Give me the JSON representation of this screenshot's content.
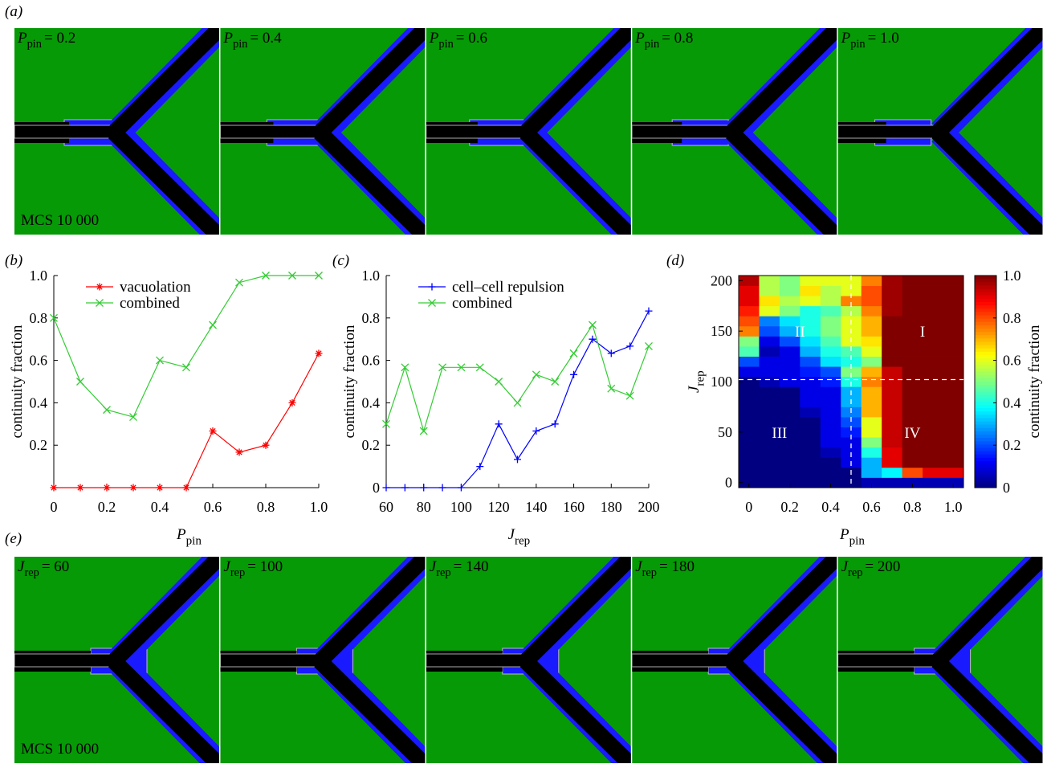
{
  "panel_a": {
    "label": "(a)",
    "footer": "MCS 10 000",
    "captions": [
      {
        "symbol": "P",
        "sub": "pin",
        "text": "= 0.2"
      },
      {
        "symbol": "P",
        "sub": "pin",
        "text": "= 0.4"
      },
      {
        "symbol": "P",
        "sub": "pin",
        "text": "= 0.6"
      },
      {
        "symbol": "P",
        "sub": "pin",
        "text": "= 0.8"
      },
      {
        "symbol": "P",
        "sub": "pin",
        "text": "= 1.0"
      }
    ]
  },
  "panel_e": {
    "label": "(e)",
    "footer": "MCS 10 000",
    "captions": [
      {
        "symbol": "J",
        "sub": "rep",
        "text": "= 60"
      },
      {
        "symbol": "J",
        "sub": "rep",
        "text": "= 100"
      },
      {
        "symbol": "J",
        "sub": "rep",
        "text": "= 140"
      },
      {
        "symbol": "J",
        "sub": "rep",
        "text": "= 180"
      },
      {
        "symbol": "J",
        "sub": "rep",
        "text": "= 200"
      }
    ]
  },
  "chart_data": [
    {
      "type": "line",
      "panel": "(b)",
      "x_label": {
        "symbol": "P",
        "sub": "pin"
      },
      "y_label": "continuity fraction",
      "x": [
        0,
        0.1,
        0.2,
        0.3,
        0.4,
        0.5,
        0.6,
        0.7,
        0.8,
        0.9,
        1.0
      ],
      "series": [
        {
          "name": "vacuolation",
          "color": "#ff0000",
          "marker": "*",
          "values": [
            0,
            0,
            0,
            0,
            0,
            0,
            0.267,
            0.167,
            0.2,
            0.4,
            0.633
          ]
        },
        {
          "name": "combined",
          "color": "#33cc33",
          "marker": "x",
          "values": [
            0.8,
            0.5,
            0.367,
            0.333,
            0.6,
            0.567,
            0.767,
            0.967,
            1.0,
            1.0,
            1.0
          ]
        }
      ],
      "xlim": [
        0,
        1
      ],
      "ylim": [
        0,
        1
      ],
      "xticks": [
        0,
        0.2,
        0.4,
        0.6,
        0.8,
        {
          "value": 1,
          "label": "1.0"
        }
      ],
      "yticks": [
        0.2,
        0.4,
        0.6,
        0.8,
        {
          "value": 1,
          "label": "1.0"
        }
      ]
    },
    {
      "type": "line",
      "panel": "(c)",
      "x_label": {
        "symbol": "J",
        "sub": "rep"
      },
      "y_label": "continuity fraction",
      "x": [
        60,
        70,
        80,
        90,
        100,
        110,
        120,
        130,
        140,
        150,
        160,
        170,
        180,
        190,
        200
      ],
      "series": [
        {
          "name": "cell–cell repulsion",
          "color": "#0000ff",
          "marker": "+",
          "values": [
            0,
            0,
            0,
            0,
            0,
            0.1,
            0.3,
            0.133,
            0.267,
            0.3,
            0.533,
            0.7,
            0.633,
            0.667,
            0.833
          ]
        },
        {
          "name": "combined",
          "color": "#33cc33",
          "marker": "x",
          "values": [
            0.3,
            0.567,
            0.267,
            0.567,
            0.567,
            0.567,
            0.5,
            0.4,
            0.533,
            0.5,
            0.633,
            0.767,
            0.467,
            0.433,
            0.667
          ]
        }
      ],
      "xlim": [
        60,
        200
      ],
      "ylim": [
        0,
        1
      ],
      "xticks": [
        60,
        80,
        100,
        120,
        140,
        160,
        180,
        200
      ],
      "yticks": [
        0,
        0.2,
        0.4,
        0.6,
        0.8,
        {
          "value": 1,
          "label": "1.0"
        }
      ]
    },
    {
      "type": "heatmap",
      "panel": "(d)",
      "x_label": {
        "symbol": "P",
        "sub": "pin"
      },
      "y_label": {
        "symbol": "J",
        "sub": "rep"
      },
      "x": [
        0,
        0.1,
        0.2,
        0.3,
        0.4,
        0.5,
        0.6,
        0.7,
        0.8,
        0.9,
        1.0
      ],
      "y": [
        0,
        10,
        20,
        30,
        40,
        50,
        60,
        70,
        80,
        90,
        100,
        110,
        120,
        130,
        140,
        150,
        160,
        170,
        180,
        190,
        200
      ],
      "z": [
        [
          0,
          0,
          0,
          0,
          0,
          0,
          0.05,
          0.05,
          0.05,
          0.05,
          0.05
        ],
        [
          0,
          0,
          0,
          0,
          0,
          0,
          0.3,
          0.37,
          0.8,
          0.9,
          0.9
        ],
        [
          0,
          0,
          0,
          0,
          0,
          0.1,
          0.3,
          0.9,
          1,
          1,
          1
        ],
        [
          0,
          0,
          0,
          0,
          0.05,
          0.1,
          0.4,
          0.9,
          1,
          1,
          1
        ],
        [
          0,
          0,
          0,
          0,
          0.1,
          0.1,
          0.5,
          0.93,
          1,
          1,
          1
        ],
        [
          0,
          0,
          0,
          0,
          0.1,
          0.15,
          0.6,
          0.93,
          1,
          1,
          1
        ],
        [
          0,
          0,
          0,
          0,
          0.1,
          0.2,
          0.6,
          0.93,
          1,
          1,
          1
        ],
        [
          0,
          0,
          0,
          0.05,
          0.1,
          0.25,
          0.7,
          0.93,
          1,
          1,
          1
        ],
        [
          0,
          0,
          0,
          0.1,
          0.1,
          0.3,
          0.7,
          0.93,
          1,
          1,
          1
        ],
        [
          0,
          0,
          0,
          0.1,
          0.1,
          0.3,
          0.7,
          0.93,
          1,
          1,
          1
        ],
        [
          0,
          0.05,
          0.1,
          0.1,
          0.15,
          0.4,
          0.75,
          0.93,
          1,
          1,
          1
        ],
        [
          0.1,
          0.1,
          0.1,
          0.15,
          0.2,
          0.5,
          0.7,
          0.93,
          1,
          1,
          1
        ],
        [
          0.2,
          0.1,
          0.1,
          0.2,
          0.35,
          0.4,
          0.5,
          1,
          1,
          1,
          1
        ],
        [
          0.45,
          0.05,
          0.1,
          0.3,
          0.4,
          0.45,
          0.6,
          1,
          1,
          1,
          1
        ],
        [
          0.5,
          0.1,
          0.2,
          0.35,
          0.45,
          0.6,
          0.65,
          1,
          1,
          1,
          1
        ],
        [
          0.75,
          0.2,
          0.3,
          0.4,
          0.5,
          0.6,
          0.7,
          1,
          1,
          1,
          1
        ],
        [
          0.8,
          0.25,
          0.35,
          0.4,
          0.5,
          0.6,
          0.7,
          1,
          1,
          1,
          1
        ],
        [
          0.85,
          0.6,
          0.5,
          0.4,
          0.45,
          0.55,
          0.75,
          0.97,
          1,
          1,
          1
        ],
        [
          0.9,
          0.65,
          0.55,
          0.6,
          0.55,
          0.75,
          0.8,
          0.97,
          1,
          1,
          1
        ],
        [
          0.9,
          0.55,
          0.5,
          0.65,
          0.55,
          0.6,
          0.8,
          0.97,
          1,
          1,
          1
        ],
        [
          0.95,
          0.55,
          0.5,
          0.6,
          0.6,
          0.6,
          0.75,
          0.97,
          1,
          1,
          1
        ]
      ],
      "xlim": [
        -0.05,
        1.05
      ],
      "ylim": [
        -5,
        205
      ],
      "xticks": [
        0,
        0.2,
        0.4,
        0.6,
        0.8,
        {
          "value": 1,
          "label": "1.0"
        }
      ],
      "yticks": [
        0,
        50,
        100,
        150,
        200
      ],
      "dashed_lines": {
        "x": 0.5,
        "y": 102
      },
      "annotations": [
        {
          "text": "I",
          "x": 0.85,
          "y": 150
        },
        {
          "text": "II",
          "x": 0.25,
          "y": 150
        },
        {
          "text": "III",
          "x": 0.15,
          "y": 50
        },
        {
          "text": "IV",
          "x": 0.8,
          "y": 50
        }
      ],
      "colorbar": {
        "label": "continuity fraction",
        "colormap": "jet",
        "lim": [
          0,
          1
        ],
        "ticks": [
          0,
          0.2,
          0.4,
          0.6,
          0.8,
          {
            "value": 1,
            "label": "1.0"
          }
        ]
      }
    }
  ]
}
